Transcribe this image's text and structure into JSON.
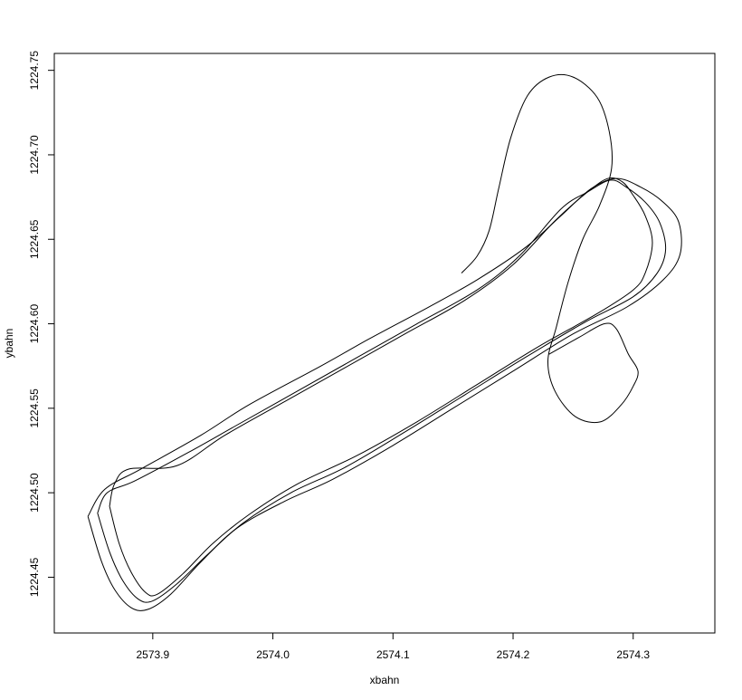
{
  "chart_data": {
    "type": "line",
    "xlabel": "xbahn",
    "ylabel": "ybahn",
    "xlim": [
      2573.818,
      2574.368
    ],
    "ylim": [
      1224.417,
      1224.76
    ],
    "x_ticks": [
      "2573.9",
      "2574.0",
      "2574.1",
      "2574.2",
      "2574.3"
    ],
    "y_ticks": [
      "1224.45",
      "1224.50",
      "1224.55",
      "1224.60",
      "1224.65",
      "1224.70",
      "1224.75"
    ],
    "grid": false,
    "legend": "none",
    "series": [
      {
        "points": [
          [
            2573.846,
            1224.486
          ],
          [
            2573.857,
            1224.46
          ],
          [
            2573.868,
            1224.443
          ],
          [
            2573.882,
            1224.432
          ],
          [
            2573.896,
            1224.431
          ],
          [
            2573.915,
            1224.44
          ],
          [
            2573.94,
            1224.459
          ],
          [
            2573.97,
            1224.479
          ],
          [
            2574.01,
            1224.495
          ],
          [
            2574.05,
            1224.508
          ],
          [
            2574.1,
            1224.528
          ],
          [
            2574.15,
            1224.55
          ],
          [
            2574.2,
            1224.572
          ],
          [
            2574.25,
            1224.594
          ],
          [
            2574.295,
            1224.61
          ],
          [
            2574.325,
            1224.626
          ],
          [
            2574.339,
            1224.641
          ],
          [
            2574.338,
            1224.66
          ],
          [
            2574.325,
            1224.672
          ],
          [
            2574.306,
            1224.681
          ],
          [
            2574.286,
            1224.686
          ],
          [
            2574.265,
            1224.68
          ],
          [
            2574.24,
            1224.664
          ],
          [
            2574.21,
            1224.645
          ],
          [
            2574.17,
            1224.626
          ],
          [
            2574.13,
            1224.61
          ],
          [
            2574.08,
            1224.591
          ],
          [
            2574.04,
            1224.575
          ],
          [
            2573.98,
            1224.552
          ],
          [
            2573.94,
            1224.534
          ],
          [
            2573.89,
            1224.514
          ],
          [
            2573.86,
            1224.502
          ],
          [
            2573.846,
            1224.486
          ]
        ]
      },
      {
        "points": [
          [
            2573.854,
            1224.488
          ],
          [
            2573.864,
            1224.465
          ],
          [
            2573.875,
            1224.448
          ],
          [
            2573.888,
            1224.437
          ],
          [
            2573.9,
            1224.436
          ],
          [
            2573.92,
            1224.446
          ],
          [
            2573.945,
            1224.463
          ],
          [
            2573.975,
            1224.482
          ],
          [
            2574.015,
            1224.5
          ],
          [
            2574.06,
            1224.515
          ],
          [
            2574.11,
            1224.536
          ],
          [
            2574.16,
            1224.558
          ],
          [
            2574.21,
            1224.58
          ],
          [
            2574.26,
            1224.601
          ],
          [
            2574.3,
            1224.616
          ],
          [
            2574.32,
            1224.63
          ],
          [
            2574.327,
            1224.644
          ],
          [
            2574.322,
            1224.66
          ],
          [
            2574.31,
            1224.672
          ],
          [
            2574.294,
            1224.681
          ],
          [
            2574.281,
            1224.685
          ],
          [
            2574.262,
            1224.678
          ],
          [
            2574.24,
            1224.668
          ],
          [
            2574.205,
            1224.64
          ],
          [
            2574.17,
            1224.62
          ],
          [
            2574.12,
            1224.6
          ],
          [
            2574.07,
            1224.58
          ],
          [
            2574.02,
            1224.56
          ],
          [
            2573.97,
            1224.54
          ],
          [
            2573.93,
            1224.524
          ],
          [
            2573.885,
            1224.507
          ],
          [
            2573.862,
            1224.5
          ],
          [
            2573.854,
            1224.488
          ]
        ]
      },
      {
        "points": [
          [
            2573.864,
            1224.492
          ],
          [
            2573.872,
            1224.47
          ],
          [
            2573.882,
            1224.453
          ],
          [
            2573.894,
            1224.441
          ],
          [
            2573.904,
            1224.44
          ],
          [
            2573.925,
            1224.452
          ],
          [
            2573.95,
            1224.47
          ],
          [
            2573.98,
            1224.487
          ],
          [
            2574.02,
            1224.505
          ],
          [
            2574.07,
            1224.522
          ],
          [
            2574.12,
            1224.542
          ],
          [
            2574.17,
            1224.564
          ],
          [
            2574.22,
            1224.586
          ],
          [
            2574.27,
            1224.606
          ],
          [
            2574.3,
            1224.62
          ],
          [
            2574.31,
            1224.63
          ],
          [
            2574.316,
            1224.648
          ],
          [
            2574.31,
            1224.664
          ],
          [
            2574.3,
            1224.676
          ],
          [
            2574.291,
            1224.684
          ],
          [
            2574.279,
            1224.686
          ],
          [
            2574.262,
            1224.678
          ],
          [
            2574.235,
            1224.661
          ],
          [
            2574.2,
            1224.635
          ],
          [
            2574.16,
            1224.614
          ],
          [
            2574.11,
            1224.594
          ],
          [
            2574.06,
            1224.574
          ],
          [
            2574.01,
            1224.554
          ],
          [
            2573.96,
            1224.534
          ],
          [
            2573.92,
            1224.516
          ],
          [
            2573.88,
            1224.514
          ],
          [
            2573.868,
            1224.505
          ],
          [
            2573.864,
            1224.492
          ]
        ]
      },
      {
        "points": [
          [
            2574.157,
            1224.63
          ],
          [
            2574.17,
            1224.64
          ],
          [
            2574.18,
            1224.655
          ],
          [
            2574.188,
            1224.68
          ],
          [
            2574.198,
            1224.71
          ],
          [
            2574.212,
            1224.735
          ],
          [
            2574.23,
            1224.746
          ],
          [
            2574.25,
            1224.746
          ],
          [
            2574.27,
            1224.734
          ],
          [
            2574.28,
            1224.714
          ],
          [
            2574.282,
            1224.692
          ],
          [
            2574.272,
            1224.67
          ],
          [
            2574.258,
            1224.65
          ],
          [
            2574.246,
            1224.625
          ],
          [
            2574.236,
            1224.598
          ],
          [
            2574.229,
            1224.578
          ],
          [
            2574.235,
            1224.56
          ],
          [
            2574.252,
            1224.545
          ],
          [
            2574.273,
            1224.542
          ],
          [
            2574.29,
            1224.552
          ],
          [
            2574.3,
            1224.563
          ],
          [
            2574.304,
            1224.572
          ],
          [
            2574.296,
            1224.582
          ],
          [
            2574.286,
            1224.597
          ],
          [
            2574.276,
            1224.6
          ],
          [
            2574.255,
            1224.592
          ],
          [
            2574.23,
            1224.582
          ]
        ]
      }
    ]
  }
}
